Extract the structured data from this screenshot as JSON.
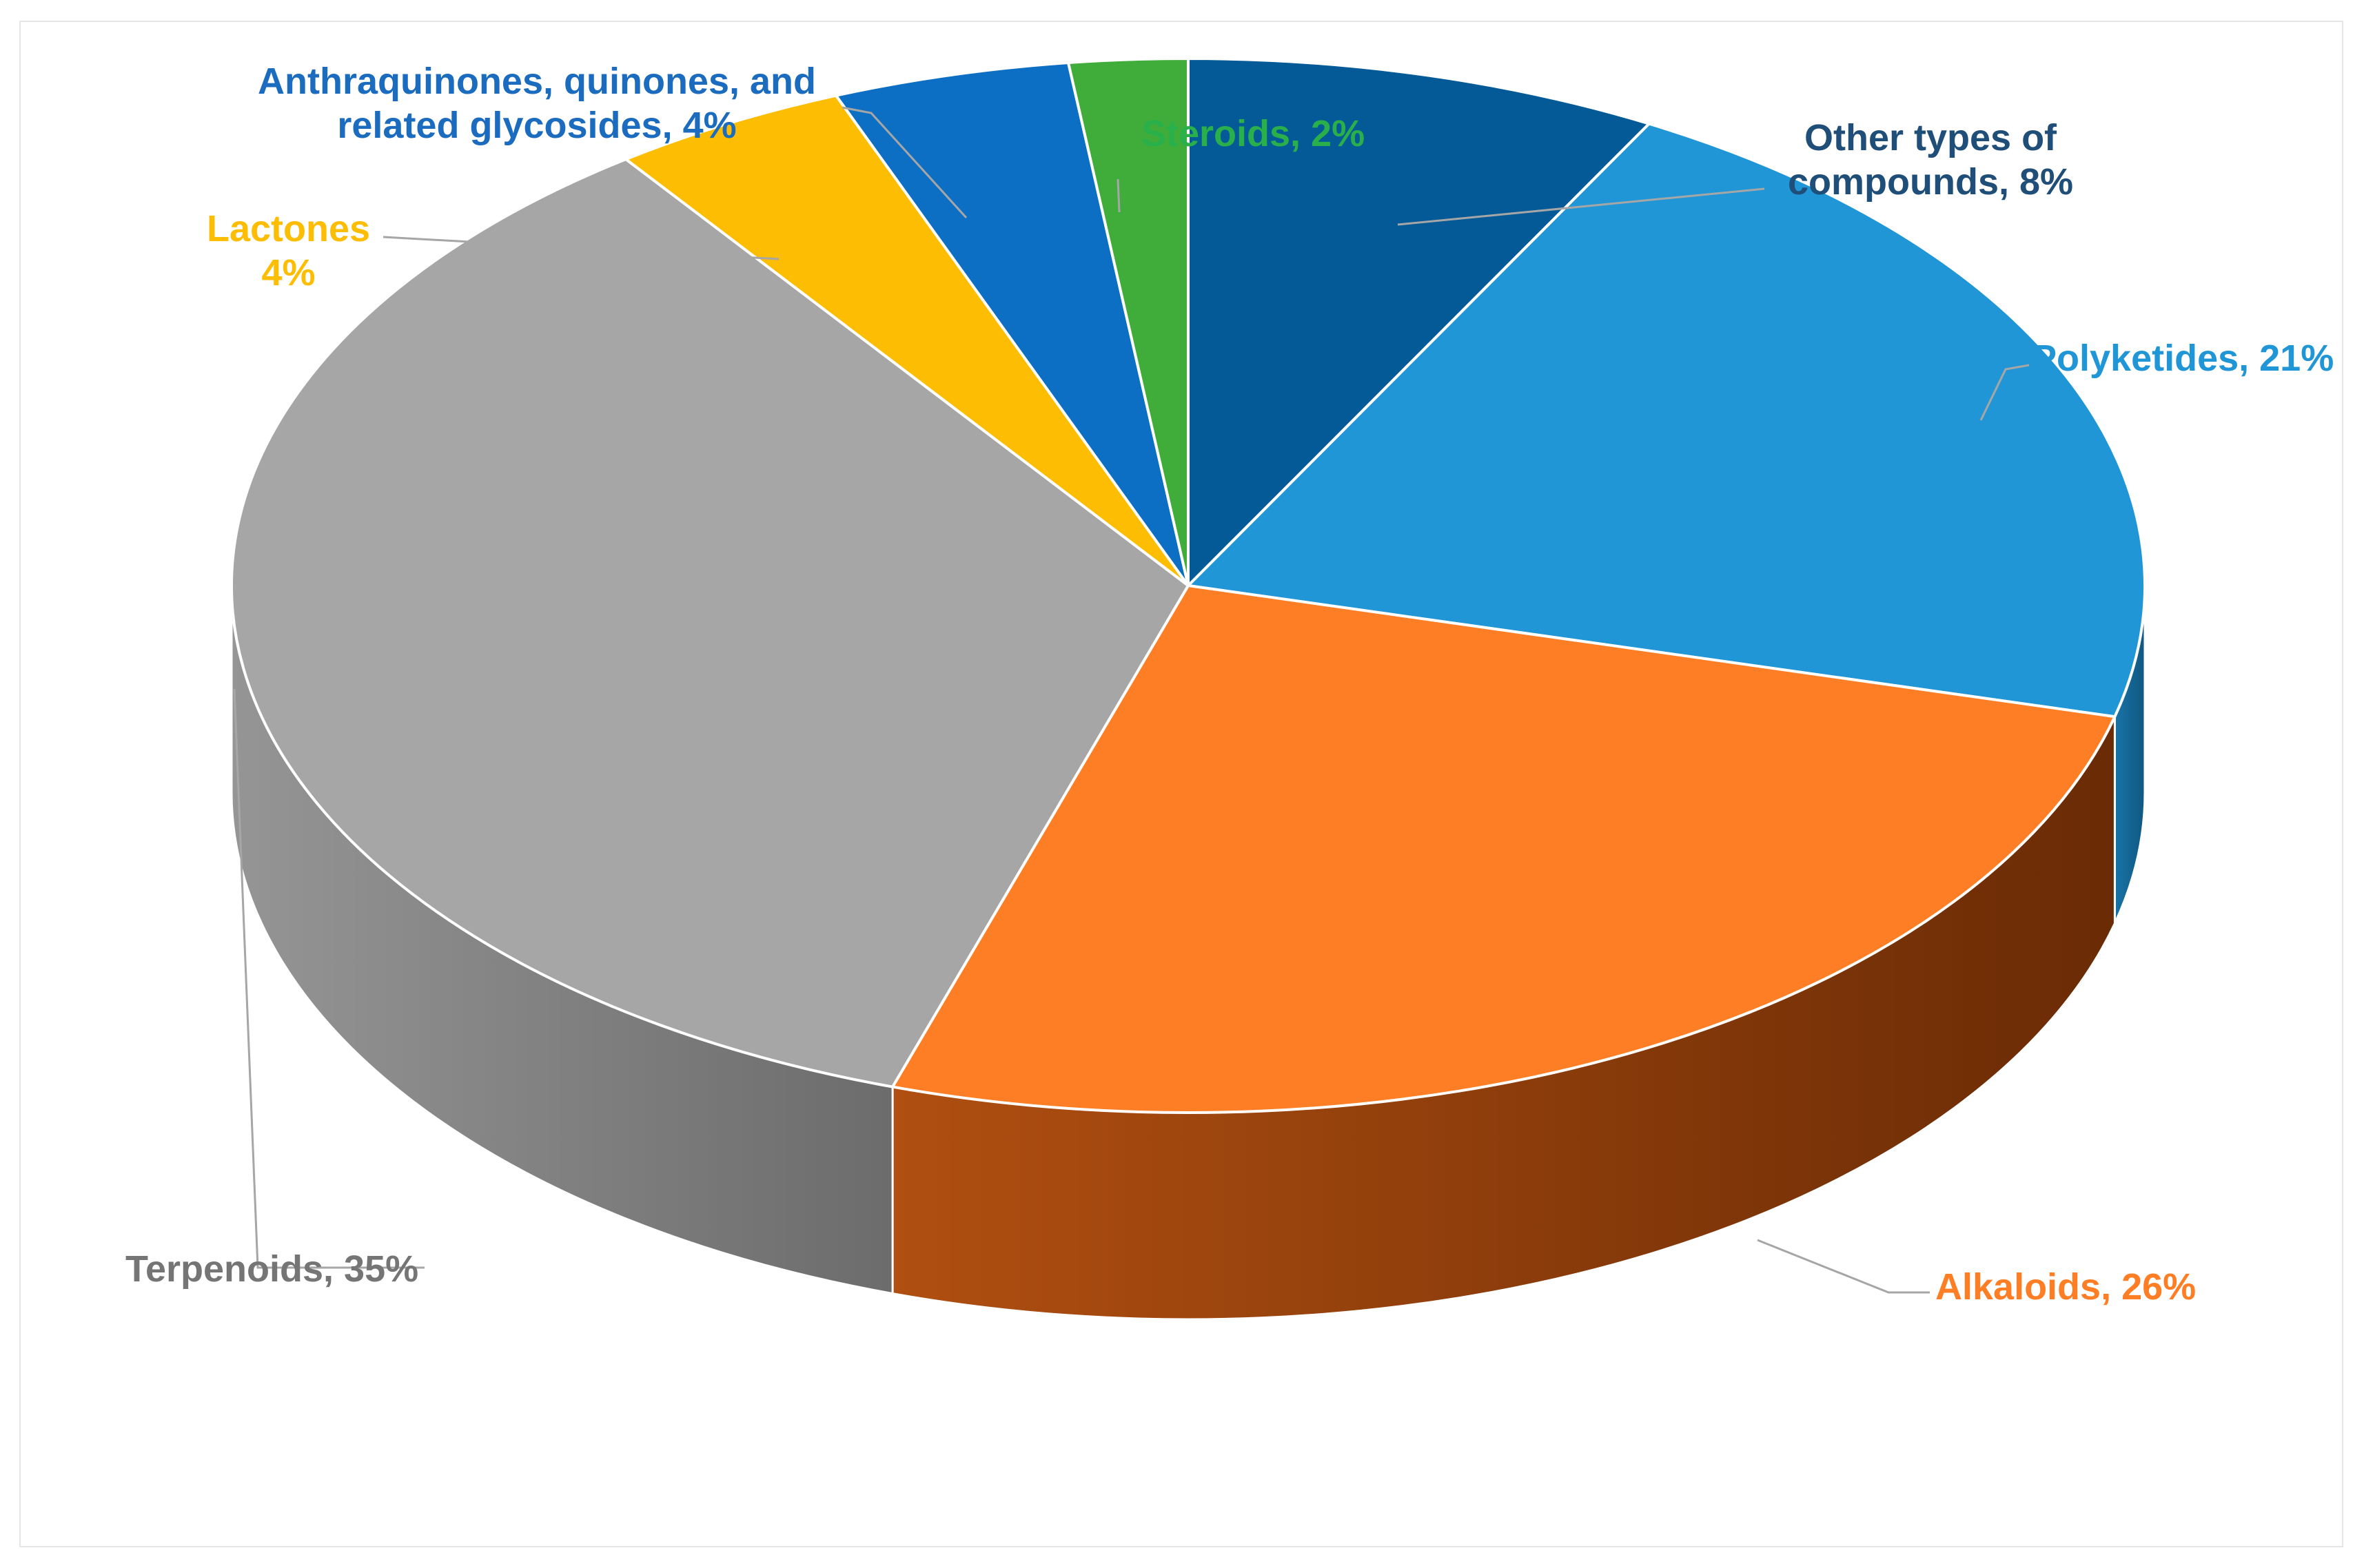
{
  "chart_data": {
    "type": "pie",
    "style": "3d",
    "title": "",
    "legend": "none",
    "slices": [
      {
        "name": "Other types of compounds",
        "value": 8,
        "color": "#045a96",
        "label_line1": "Other types of",
        "label_line2": "compounds, 8%",
        "label_color": "#1f4e79"
      },
      {
        "name": "Polyketides",
        "value": 21,
        "color": "#2196d6",
        "label_line1": "Polyketides, 21%",
        "label_line2": "",
        "label_color": "#2196d6"
      },
      {
        "name": "Alkaloids",
        "value": 26,
        "color": "#fd7e25",
        "label_line1": "Alkaloids, 26%",
        "label_line2": "",
        "label_color": "#fd7e25"
      },
      {
        "name": "Terpenoids",
        "value": 35,
        "color": "#a6a6a6",
        "label_line1": "Terpenoids, 35%",
        "label_line2": "",
        "label_color": "#757575"
      },
      {
        "name": "Lactones",
        "value": 4,
        "color": "#fdbd02",
        "label_line1": "Lactones",
        "label_line2": "4%",
        "label_color": "#fdbd02"
      },
      {
        "name": "Anthraquinones, quinones, and related glycosides",
        "value": 4,
        "color": "#0c6fc4",
        "label_line1": "Anthraquinones, quinones, and",
        "label_line2": "related glycosides, 4%",
        "label_color": "#1b6bbf"
      },
      {
        "name": "Steroids",
        "value": 2,
        "color": "#40ad3a",
        "label_line1": "Steroids,  2%",
        "label_line2": "",
        "label_color": "#2ab04b"
      }
    ],
    "side_colors": {
      "Polyketides": [
        "#1874a8",
        "#0f5780"
      ],
      "Alkaloids": [
        "#b04f11",
        "#6a2b05"
      ],
      "Terpenoids": [
        "#959595",
        "#6c6c6c"
      ]
    }
  }
}
